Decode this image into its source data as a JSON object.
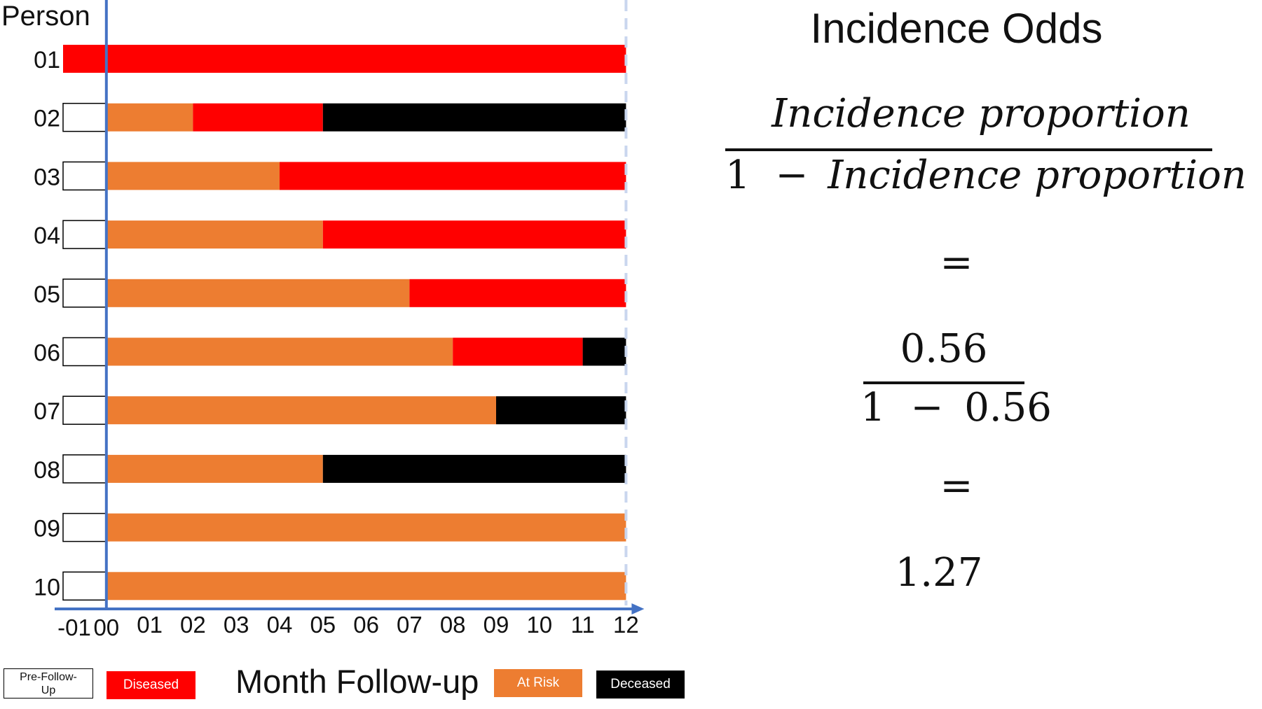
{
  "chart_data": {
    "type": "timeline-bar",
    "ylabel": "Person",
    "xlabel": "Month Follow-up",
    "x_ticks": [
      "-01",
      "00",
      "01",
      "02",
      "03",
      "04",
      "05",
      "06",
      "07",
      "08",
      "09",
      "10",
      "11",
      "12"
    ],
    "xlim": [
      -1,
      12
    ],
    "persons": [
      {
        "id": "01",
        "segments": [
          {
            "status": "diseased",
            "start": -1,
            "end": 12
          }
        ]
      },
      {
        "id": "02",
        "segments": [
          {
            "status": "pre",
            "start": -1,
            "end": 0
          },
          {
            "status": "at_risk",
            "start": 0,
            "end": 2
          },
          {
            "status": "diseased",
            "start": 2,
            "end": 5
          },
          {
            "status": "deceased",
            "start": 5,
            "end": 12
          }
        ]
      },
      {
        "id": "03",
        "segments": [
          {
            "status": "pre",
            "start": -1,
            "end": 0
          },
          {
            "status": "at_risk",
            "start": 0,
            "end": 4
          },
          {
            "status": "diseased",
            "start": 4,
            "end": 12
          }
        ]
      },
      {
        "id": "04",
        "segments": [
          {
            "status": "pre",
            "start": -1,
            "end": 0
          },
          {
            "status": "at_risk",
            "start": 0,
            "end": 5
          },
          {
            "status": "diseased",
            "start": 5,
            "end": 12
          }
        ]
      },
      {
        "id": "05",
        "segments": [
          {
            "status": "pre",
            "start": -1,
            "end": 0
          },
          {
            "status": "at_risk",
            "start": 0,
            "end": 7
          },
          {
            "status": "diseased",
            "start": 7,
            "end": 12
          }
        ]
      },
      {
        "id": "06",
        "segments": [
          {
            "status": "pre",
            "start": -1,
            "end": 0
          },
          {
            "status": "at_risk",
            "start": 0,
            "end": 8
          },
          {
            "status": "diseased",
            "start": 8,
            "end": 11
          },
          {
            "status": "deceased",
            "start": 11,
            "end": 12
          }
        ]
      },
      {
        "id": "07",
        "segments": [
          {
            "status": "pre",
            "start": -1,
            "end": 0
          },
          {
            "status": "at_risk",
            "start": 0,
            "end": 9
          },
          {
            "status": "deceased",
            "start": 9,
            "end": 12
          }
        ]
      },
      {
        "id": "08",
        "segments": [
          {
            "status": "pre",
            "start": -1,
            "end": 0
          },
          {
            "status": "at_risk",
            "start": 0,
            "end": 5
          },
          {
            "status": "deceased",
            "start": 5,
            "end": 12
          }
        ]
      },
      {
        "id": "09",
        "segments": [
          {
            "status": "pre",
            "start": -1,
            "end": 0
          },
          {
            "status": "at_risk",
            "start": 0,
            "end": 12
          }
        ]
      },
      {
        "id": "10",
        "segments": [
          {
            "status": "pre",
            "start": -1,
            "end": 0
          },
          {
            "status": "at_risk",
            "start": 0,
            "end": 12
          }
        ]
      }
    ],
    "colors": {
      "pre": "#ffffff",
      "at_risk": "#ED7D31",
      "diseased": "#FF0000",
      "deceased": "#000000",
      "axis": "#4472C4",
      "end_line": "#C9D6EE"
    },
    "legend": [
      {
        "key": "pre",
        "label": "Pre-Follow-Up"
      },
      {
        "key": "diseased",
        "label": "Diseased"
      },
      {
        "key": "at_risk",
        "label": "At Risk"
      },
      {
        "key": "deceased",
        "label": "Deceased"
      }
    ]
  },
  "formula": {
    "title": "Incidence Odds",
    "numerator": "Incidence proportion",
    "denominator_one": "1",
    "denominator_minus": "−",
    "denominator_term": "Incidence proportion",
    "equals": "=",
    "num_value": "0.56",
    "den_value_one": "1",
    "den_value_minus": "−",
    "den_value_term": "0.56",
    "result": "1.27"
  }
}
